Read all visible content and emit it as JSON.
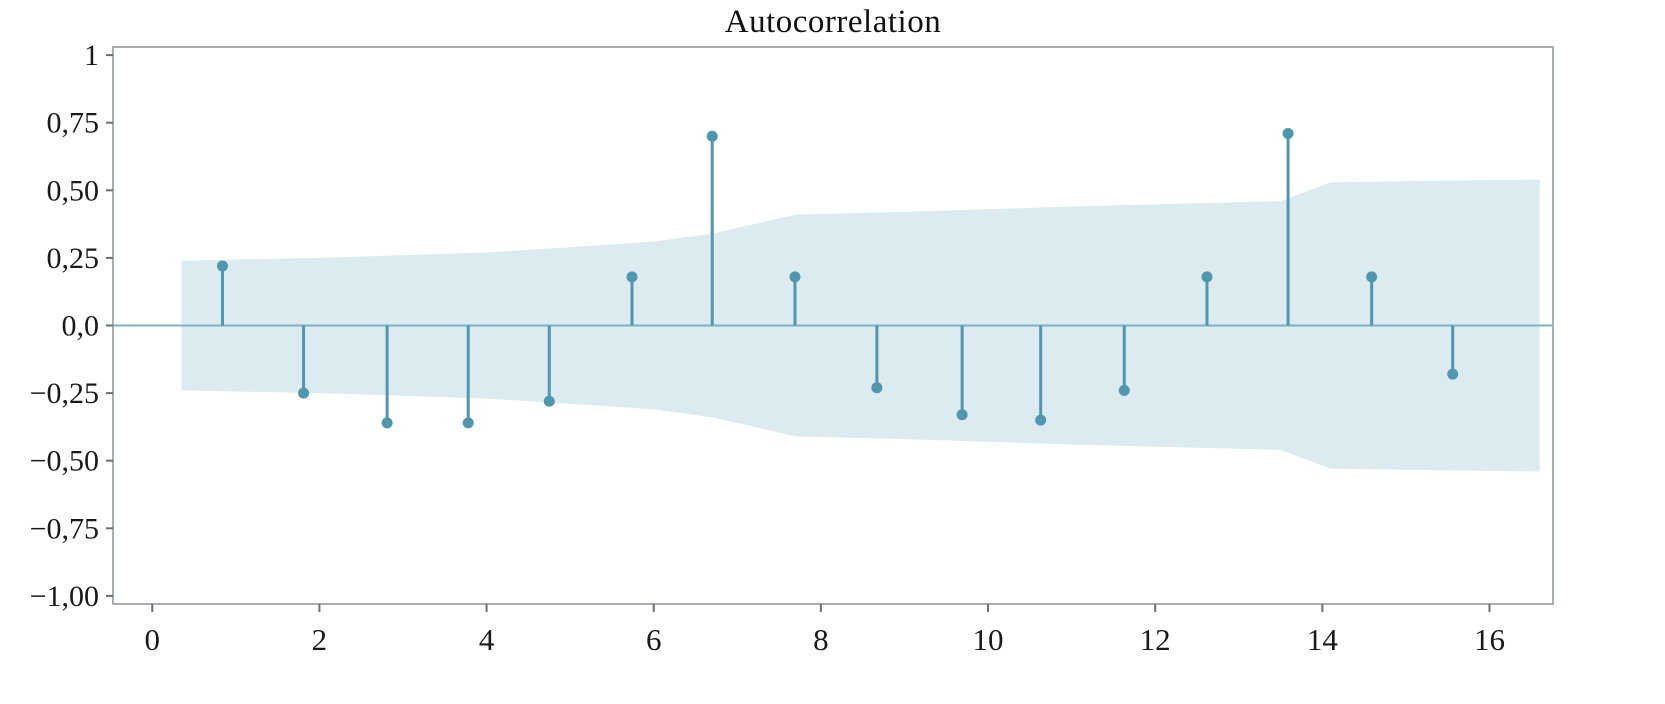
{
  "chart_data": {
    "type": "stem",
    "chart_kind": "autocorrelation-function-plot",
    "title": "Autocorrelation",
    "lags": [
      1,
      2,
      3,
      4,
      5,
      6,
      7,
      8,
      9,
      10,
      11,
      12,
      13,
      14,
      15,
      16
    ],
    "x_positions": [
      0.84,
      1.81,
      2.81,
      3.78,
      4.75,
      5.74,
      6.7,
      7.69,
      8.67,
      9.69,
      10.63,
      11.63,
      12.62,
      13.59,
      14.59,
      15.56
    ],
    "values": [
      0.22,
      -0.25,
      -0.36,
      -0.36,
      -0.28,
      0.18,
      0.7,
      0.18,
      -0.23,
      -0.33,
      -0.35,
      -0.24,
      0.18,
      0.71,
      0.18,
      -0.18
    ],
    "confidence_band": {
      "x": [
        0.35,
        2.0,
        4.0,
        6.0,
        6.7,
        7.7,
        9.0,
        11.0,
        13.5,
        14.1,
        16.6
      ],
      "upper": [
        0.24,
        0.25,
        0.27,
        0.31,
        0.34,
        0.41,
        0.42,
        0.44,
        0.46,
        0.53,
        0.54
      ],
      "lower": [
        -0.24,
        -0.25,
        -0.27,
        -0.31,
        -0.34,
        -0.41,
        -0.42,
        -0.44,
        -0.46,
        -0.53,
        -0.54
      ]
    },
    "x_ticks": [
      0,
      2,
      4,
      6,
      8,
      10,
      12,
      14,
      16
    ],
    "x_tick_labels": [
      "0",
      "2",
      "4",
      "6",
      "8",
      "10",
      "12",
      "14",
      "16"
    ],
    "y_ticks": [
      1,
      0.75,
      0.5,
      0.25,
      0,
      -0.25,
      -0.5,
      -0.75,
      -1
    ],
    "y_tick_labels": [
      "1",
      "0,75",
      "0,50",
      "0,25",
      "0,0",
      "−0,25",
      "−0,50",
      "−0,75",
      "−1,00"
    ],
    "xlim": [
      -0.47,
      16.76
    ],
    "ylim": [
      -1.03,
      1.03
    ],
    "grid": false,
    "legend": false,
    "colors": {
      "stem": "#4f96ae",
      "marker": "#4f96ae",
      "band_fill": "#dcebf0",
      "zero_line": "#7cb2c3",
      "border": "#a9aeb2",
      "tick": "#6b7075",
      "text": "#1a1a1a",
      "background": "#ffffff"
    }
  }
}
